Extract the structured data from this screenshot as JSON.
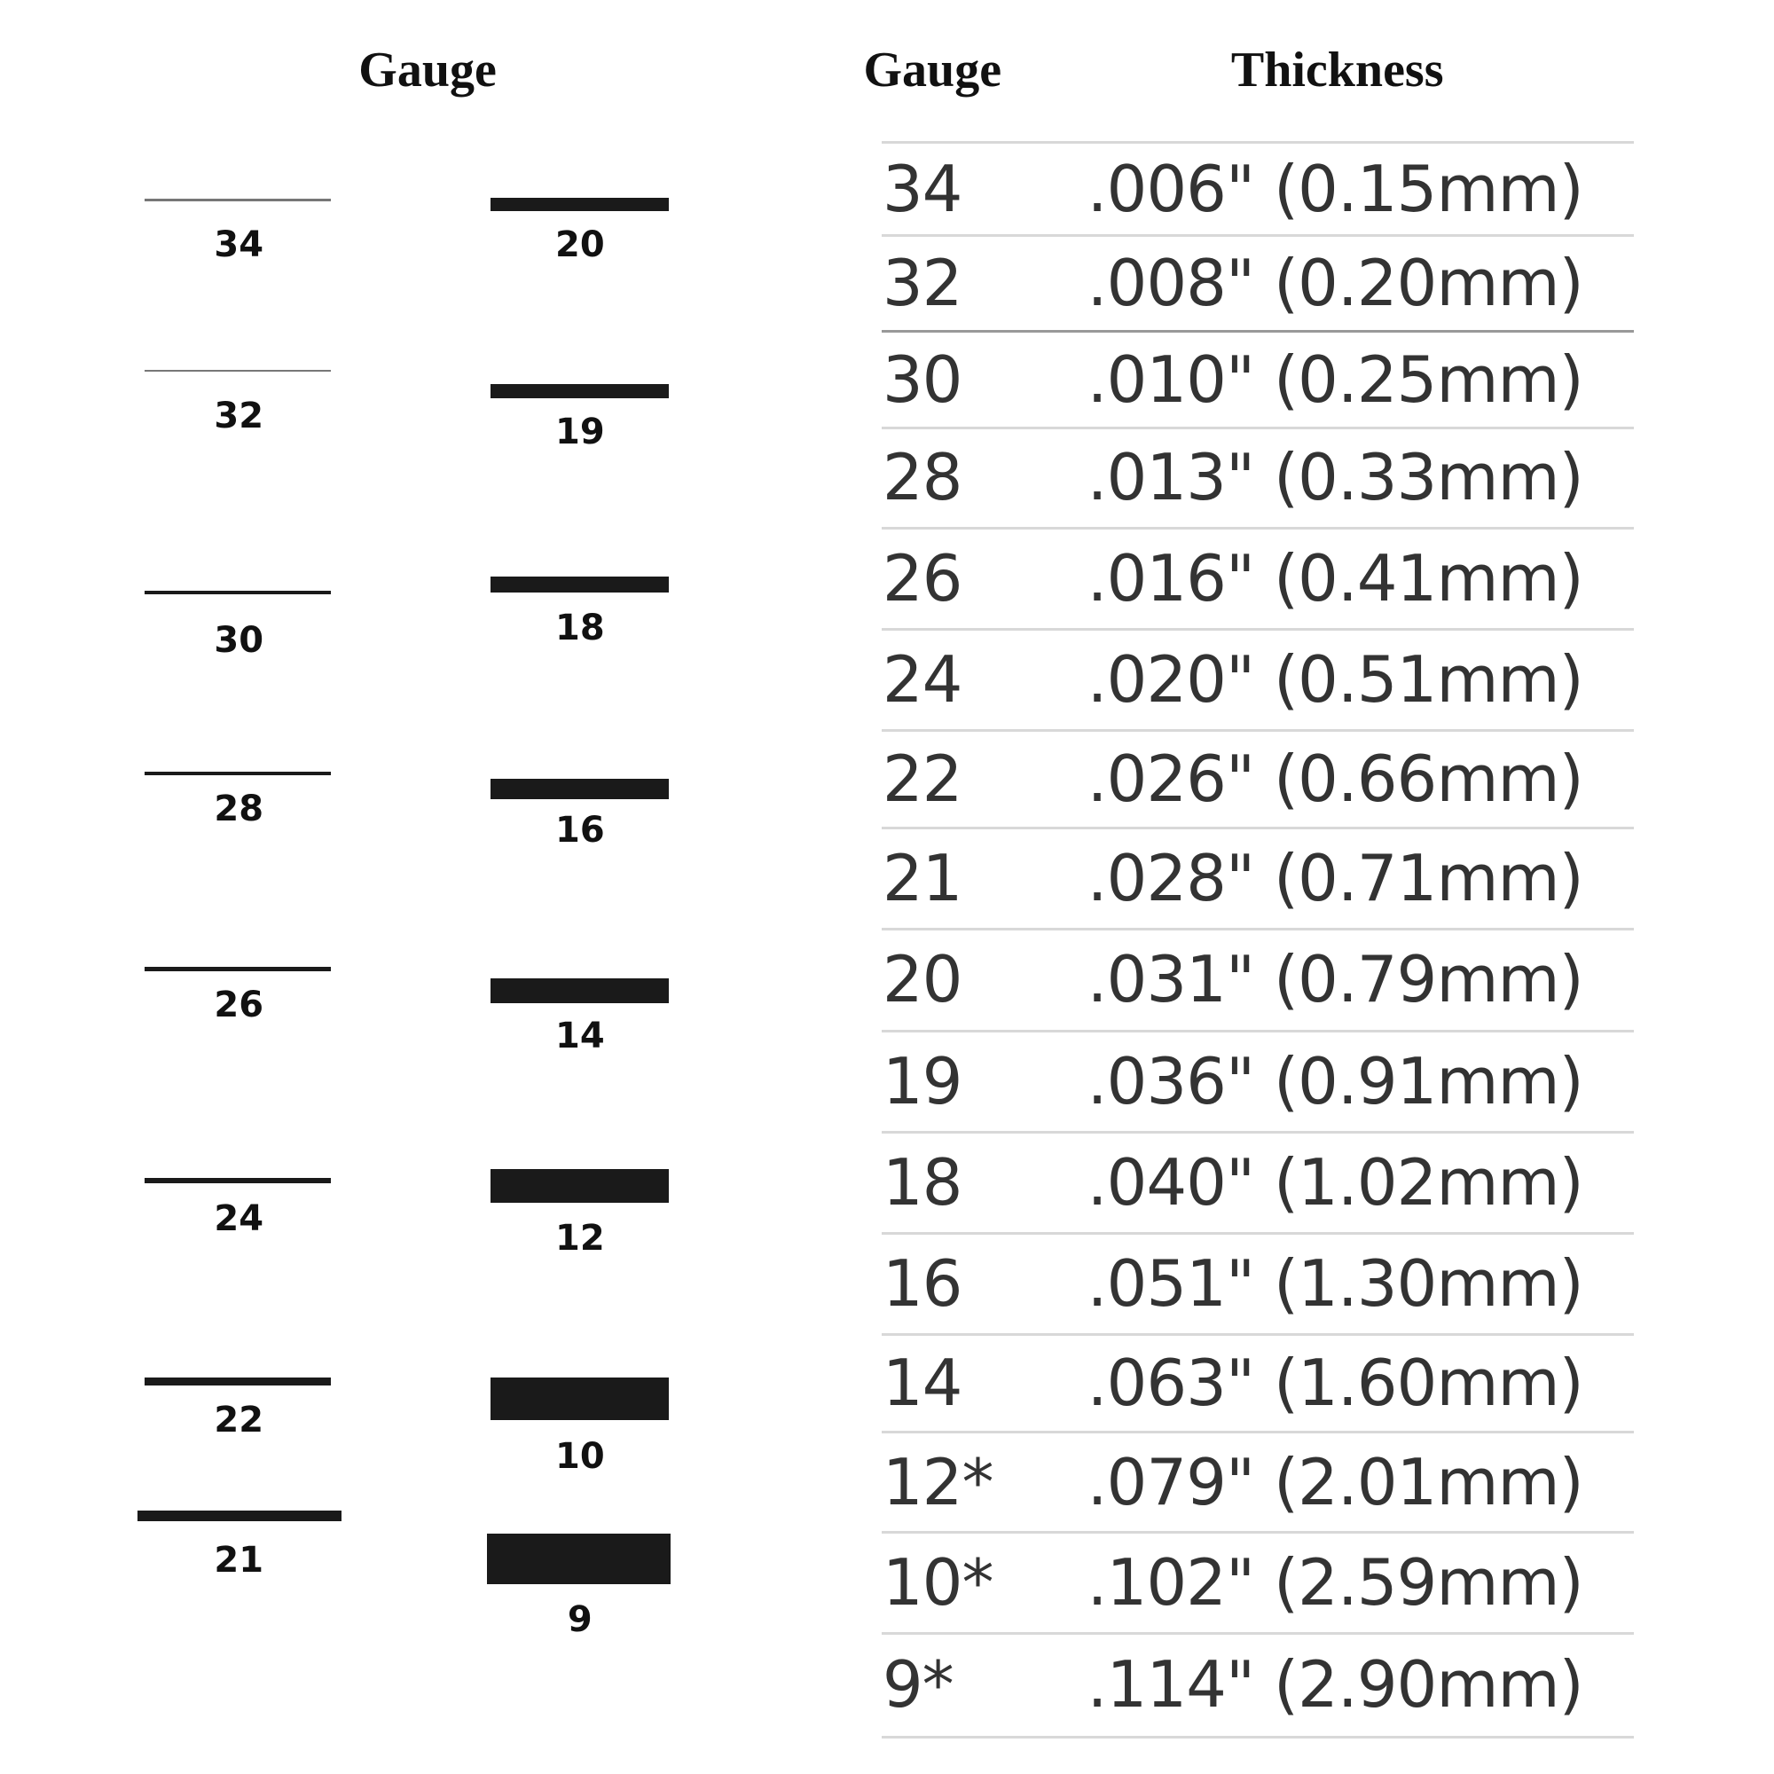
{
  "swatch_panel": {
    "title": "Gauge",
    "left_column": [
      "34",
      "32",
      "30",
      "28",
      "26",
      "24",
      "22",
      "21"
    ],
    "right_column": [
      "20",
      "19",
      "18",
      "16",
      "14",
      "12",
      "10",
      "9"
    ]
  },
  "table": {
    "header": [
      "Gauge",
      "Thickness"
    ],
    "rows": [
      [
        "34",
        ".006\" (0.15mm)"
      ],
      [
        "32",
        ".008\" (0.20mm)"
      ],
      [
        "30",
        ".010\" (0.25mm)"
      ],
      [
        "28",
        ".013\" (0.33mm)"
      ],
      [
        "26",
        ".016\" (0.41mm)"
      ],
      [
        "24",
        ".020\" (0.51mm)"
      ],
      [
        "22",
        ".026\" (0.66mm)"
      ],
      [
        "21",
        ".028\" (0.71mm)"
      ],
      [
        "20",
        ".031\" (0.79mm)"
      ],
      [
        "19",
        ".036\" (0.91mm)"
      ],
      [
        "18",
        ".040\" (1.02mm)"
      ],
      [
        "16",
        ".051\" (1.30mm)"
      ],
      [
        "14",
        ".063\" (1.60mm)"
      ],
      [
        "12*",
        ".079\" (2.01mm)"
      ],
      [
        "10*",
        ".102\" (2.59mm)"
      ],
      [
        "9*",
        ".114\" (2.90mm)"
      ]
    ]
  }
}
